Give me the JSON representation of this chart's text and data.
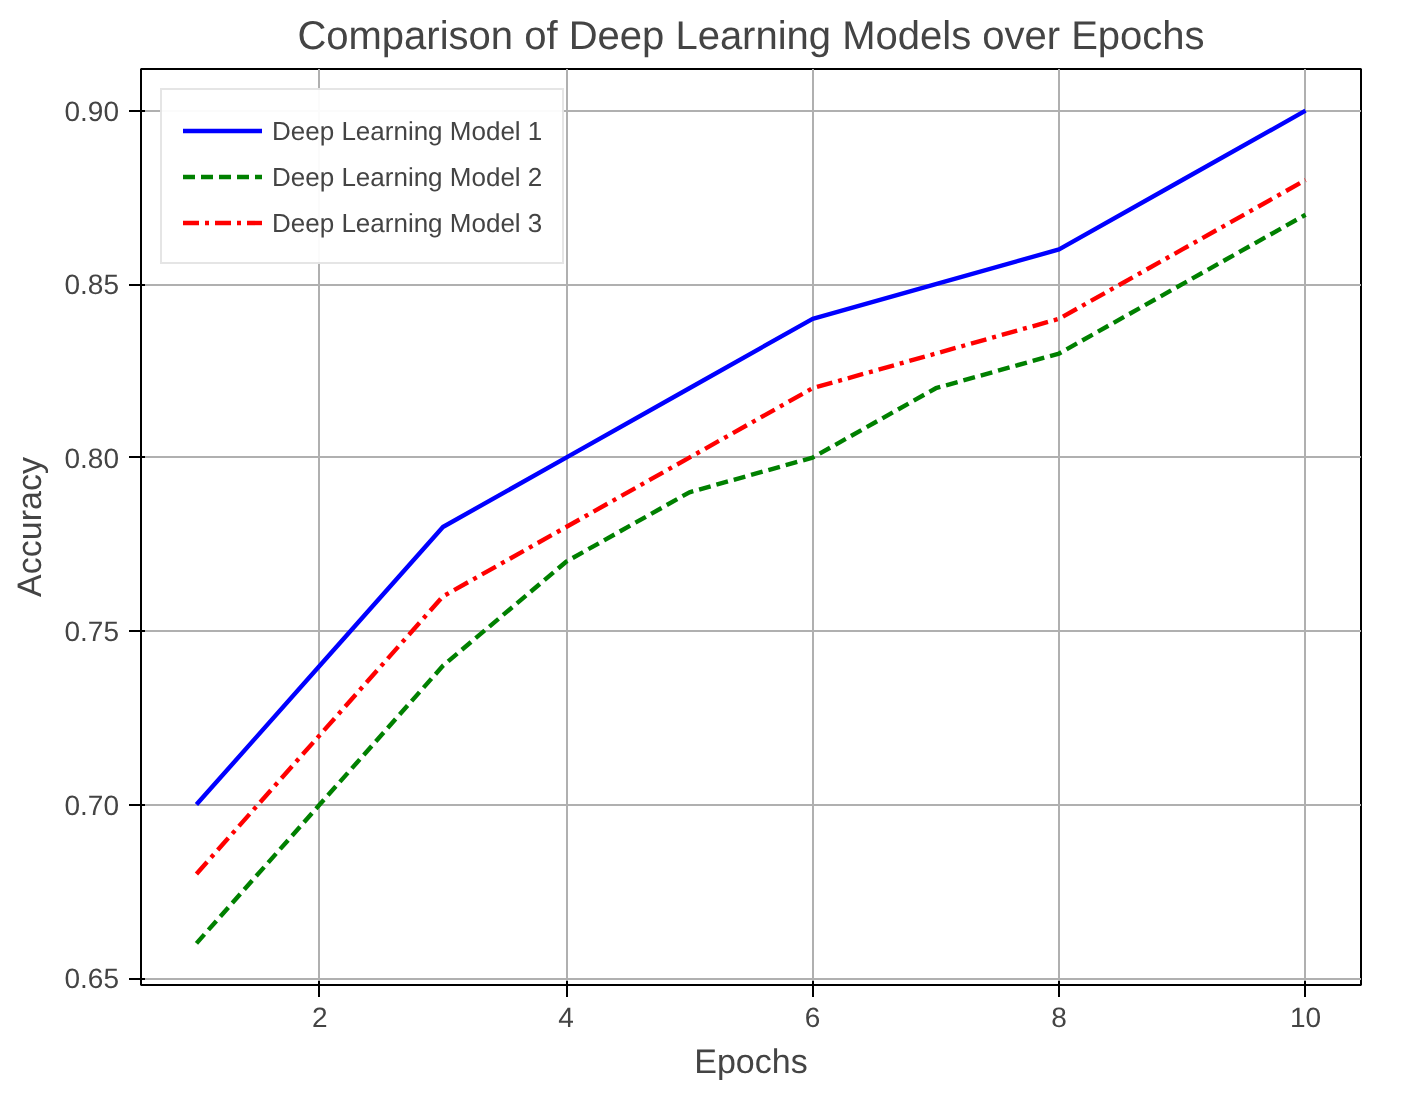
{
  "chart_data": {
    "type": "line",
    "title": "Comparison of Deep Learning Models over Epochs",
    "xlabel": "Epochs",
    "ylabel": "Accuracy",
    "x": [
      1,
      2,
      3,
      4,
      5,
      6,
      7,
      8,
      9,
      10
    ],
    "series": [
      {
        "name": "Deep Learning Model 1",
        "color": "#0000ff",
        "line_style": "solid",
        "values": [
          0.7,
          0.74,
          0.78,
          0.8,
          0.82,
          0.84,
          0.85,
          0.86,
          0.88,
          0.9
        ]
      },
      {
        "name": "Deep Learning Model 2",
        "color": "#008000",
        "line_style": "dashed",
        "values": [
          0.66,
          0.7,
          0.74,
          0.77,
          0.79,
          0.8,
          0.82,
          0.83,
          0.85,
          0.87
        ]
      },
      {
        "name": "Deep Learning Model 3",
        "color": "#ff0000",
        "line_style": "dashdot",
        "values": [
          0.68,
          0.72,
          0.76,
          0.78,
          0.8,
          0.82,
          0.83,
          0.84,
          0.86,
          0.88
        ]
      }
    ],
    "xlim": [
      0.55,
      10.45
    ],
    "ylim": [
      0.648,
      0.912
    ],
    "xticks": [
      2,
      4,
      6,
      8,
      10
    ],
    "yticks": [
      {
        "value": 0.65,
        "label": "0.65"
      },
      {
        "value": 0.7,
        "label": "0.70"
      },
      {
        "value": 0.75,
        "label": "0.75"
      },
      {
        "value": 0.8,
        "label": "0.80"
      },
      {
        "value": 0.85,
        "label": "0.85"
      },
      {
        "value": 0.9,
        "label": "0.90"
      }
    ],
    "grid": true,
    "legend": "top left",
    "marker": "none"
  }
}
